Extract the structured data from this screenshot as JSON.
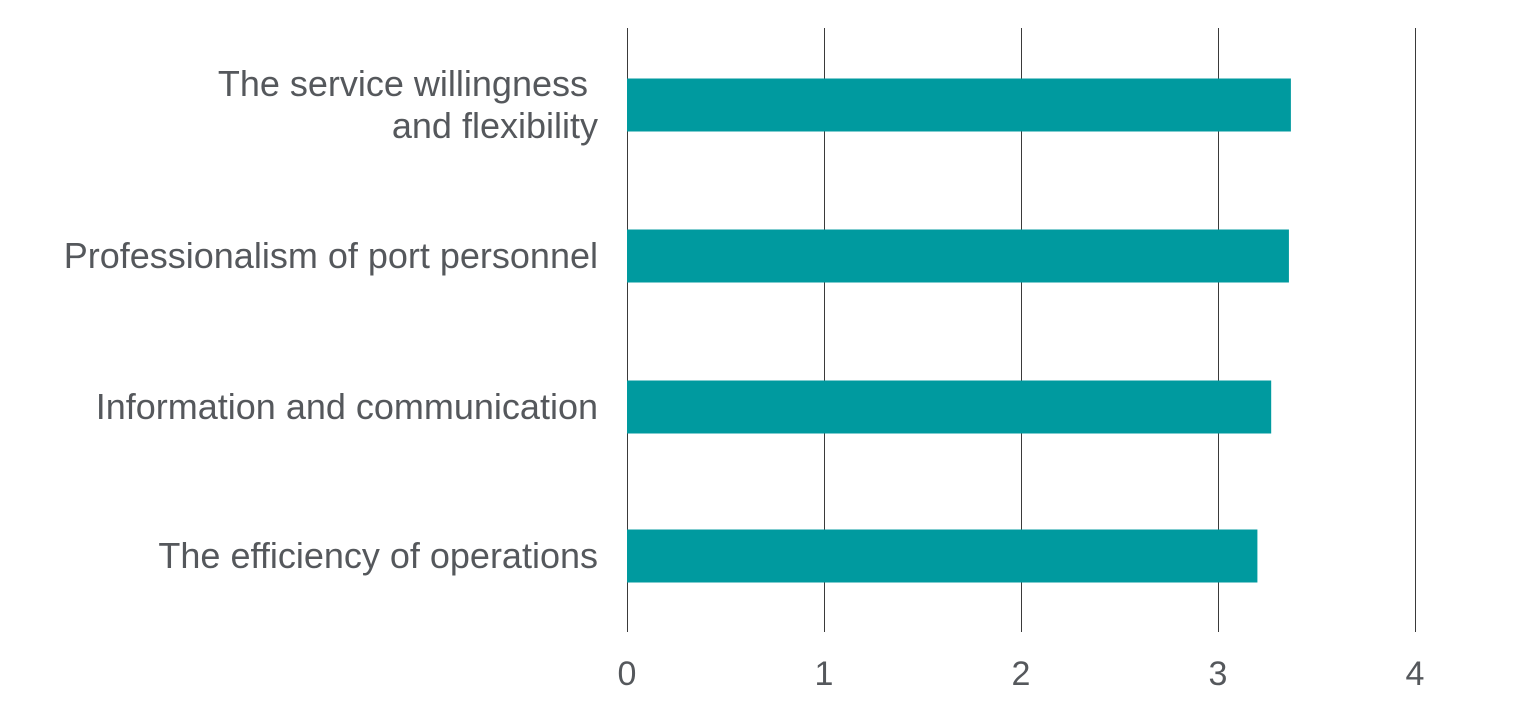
{
  "chart_data": {
    "type": "bar",
    "orientation": "horizontal",
    "categories": [
      [
        "The service willingness ",
        "and flexibility"
      ],
      [
        "Professionalism of port personnel"
      ],
      [
        "Information and communication"
      ],
      [
        "The efficiency of operations"
      ]
    ],
    "values": [
      3.37,
      3.36,
      3.27,
      3.2
    ],
    "xlim": [
      0,
      4
    ],
    "x_ticks": [
      "0",
      "1",
      "2",
      "3",
      "4"
    ],
    "grid": true,
    "legend": false,
    "bar_color": "#009a9f",
    "text_color": "#55585c",
    "grid_color": "#3a3a3a",
    "title": "",
    "xlabel": "",
    "ylabel": ""
  }
}
